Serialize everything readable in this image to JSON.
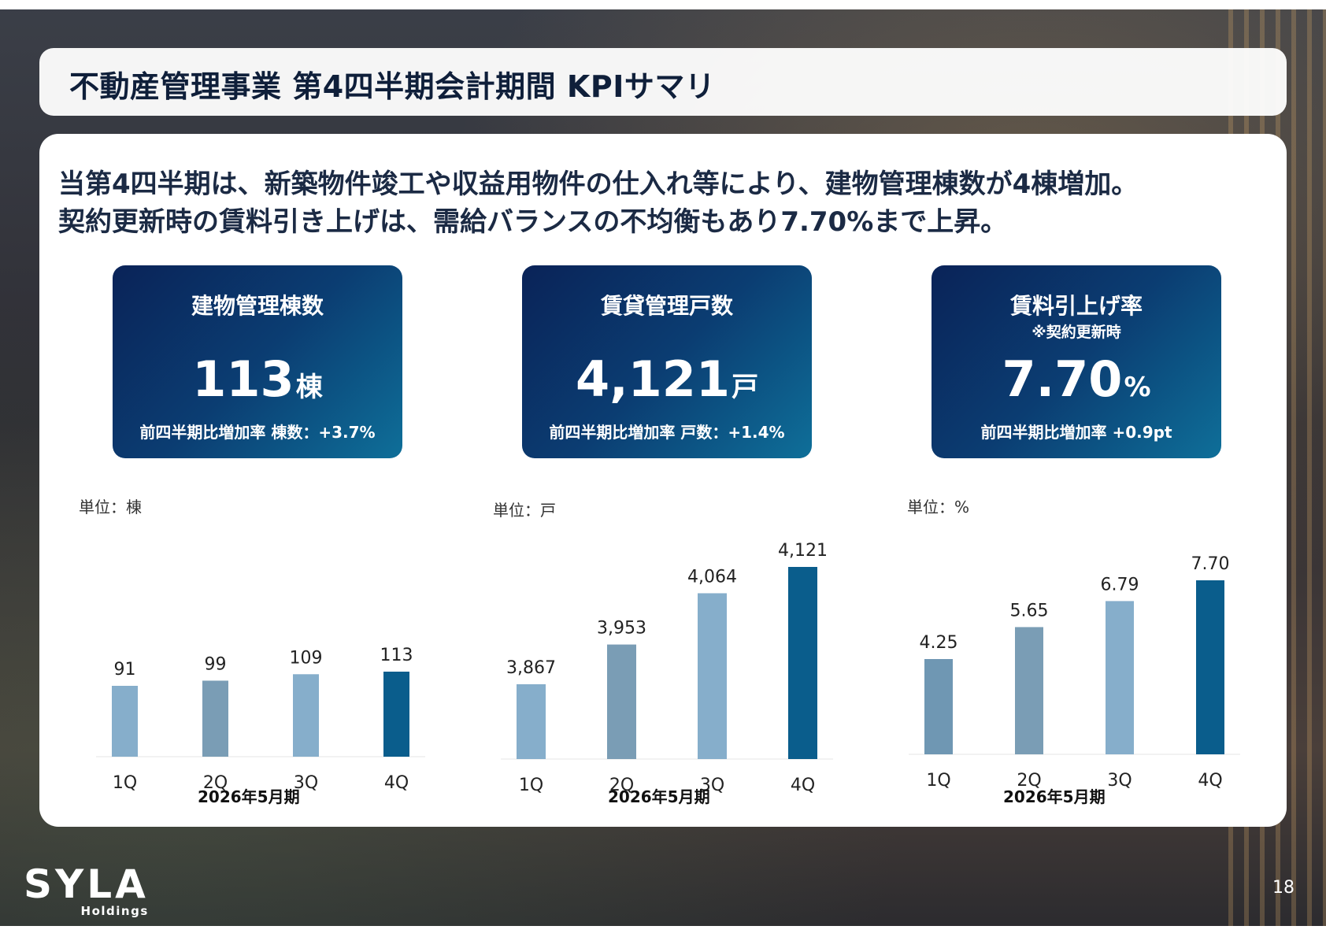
{
  "title": "不動産管理事業 第4四半期会計期間 KPIサマリ",
  "headline": {
    "line1": "当第4四半期は、新築物件竣工や収益用物件の仕入れ等により、建物管理棟数が4棟増加。",
    "line2": "契約更新時の賃料引き上げは、需給バランスの不均衡もあり7.70%まで上昇。"
  },
  "kpis": [
    {
      "title": "建物管理棟数",
      "note": "",
      "value": "113",
      "unit": "棟",
      "sub": "前四半期比増加率 棟数：+3.7%"
    },
    {
      "title": "賃貸管理戸数",
      "note": "",
      "value": "4,121",
      "unit": "戸",
      "sub": "前四半期比増加率 戸数：+1.4%"
    },
    {
      "title": "賃料引上げ率",
      "note": "※契約更新時",
      "value": "7.70",
      "unit": "%",
      "sub": "前四半期比増加率 +0.9pt"
    }
  ],
  "chart_data": [
    {
      "type": "bar",
      "unit_label": "単位：棟",
      "period_label": "2026年5月期",
      "categories": [
        "1Q",
        "2Q",
        "3Q",
        "4Q"
      ],
      "values": [
        91,
        99,
        109,
        113
      ],
      "value_labels": [
        "91",
        "99",
        "109",
        "113"
      ],
      "bar_colors": [
        "#86aecb",
        "#7a9db5",
        "#86aecb",
        "#0a5d8c"
      ]
    },
    {
      "type": "bar",
      "unit_label": "単位：戸",
      "period_label": "2026年5月期",
      "categories": [
        "1Q",
        "2Q",
        "3Q",
        "4Q"
      ],
      "values": [
        3867,
        3953,
        4064,
        4121
      ],
      "value_labels": [
        "3,867",
        "3,953",
        "4,064",
        "4,121"
      ],
      "bar_colors": [
        "#86aecb",
        "#7a9db5",
        "#86aecb",
        "#0a5d8c"
      ]
    },
    {
      "type": "bar",
      "unit_label": "単位：%",
      "period_label": "2026年5月期",
      "categories": [
        "1Q",
        "2Q",
        "3Q",
        "4Q"
      ],
      "values": [
        4.25,
        5.65,
        6.79,
        7.7
      ],
      "value_labels": [
        "4.25",
        "5.65",
        "6.79",
        "7.70"
      ],
      "bar_colors": [
        "#6f97b3",
        "#7a9db5",
        "#86aecb",
        "#0a5d8c"
      ]
    }
  ],
  "logo": {
    "main": "SYLA",
    "sub": "Holdings"
  },
  "page_number": "18"
}
